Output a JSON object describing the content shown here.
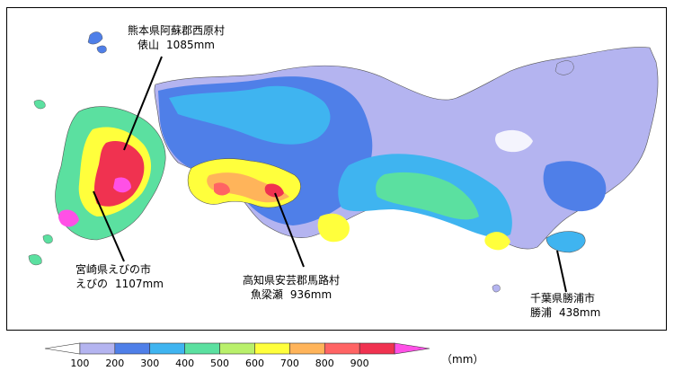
{
  "annotations": [
    {
      "place": "熊本県阿蘇郡西原村",
      "station": "俵山",
      "value": "1085mm"
    },
    {
      "place": "宮崎県えびの市",
      "station": "えびの",
      "value": "1107mm"
    },
    {
      "place": "高知県安芸郡馬路村",
      "station": "魚梁瀬",
      "value": "936mm"
    },
    {
      "place": "千葉県勝浦市",
      "station": "勝浦",
      "value": "438mm"
    }
  ],
  "legend": {
    "unit": "（mm）",
    "ticks": [
      "100",
      "200",
      "300",
      "400",
      "500",
      "600",
      "700",
      "800",
      "900"
    ],
    "colors": [
      "#ffffff",
      "#b4b4f0",
      "#4f7fe8",
      "#3fb4f0",
      "#5be0a0",
      "#b9f06b",
      "#ffff3c",
      "#ffb45a",
      "#ff6464",
      "#f03250",
      "#ff50e6"
    ]
  },
  "colors": {
    "land_low": "#b4b4f0",
    "land_mid": "#4f7fe8",
    "land_cyan": "#3fb4f0",
    "land_green": "#5be0a0",
    "land_yellow": "#ffff3c",
    "land_red": "#f03250",
    "land_magenta": "#ff50e6",
    "sea": "#ffffff"
  }
}
